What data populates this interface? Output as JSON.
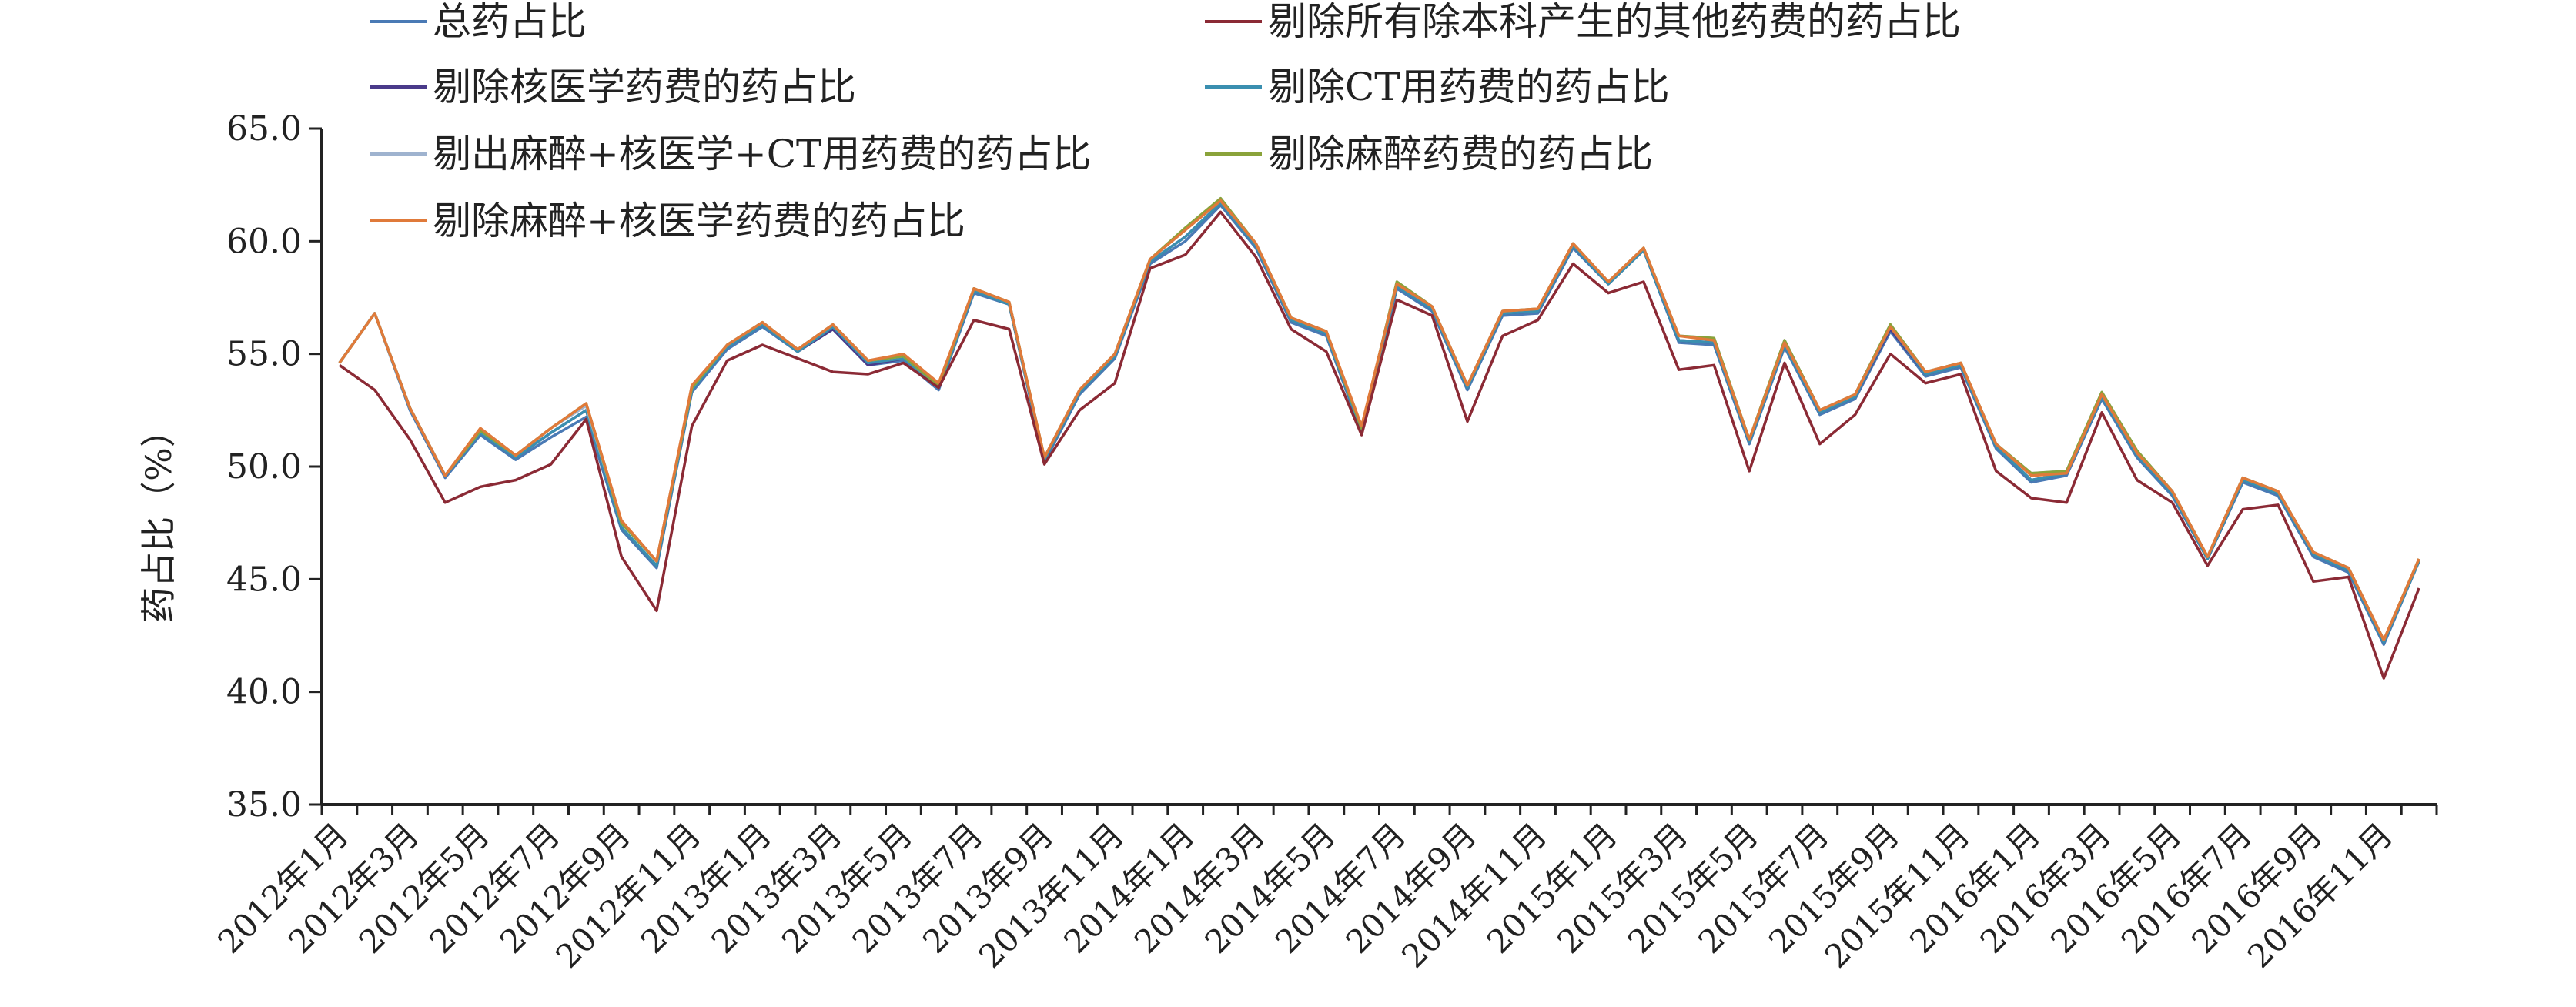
{
  "chart_data": {
    "type": "line",
    "title": "",
    "xlabel": "",
    "ylabel": "药占比（%）",
    "ylim": [
      35.0,
      65.0
    ],
    "yticks": [
      "35.0",
      "40.0",
      "45.0",
      "50.0",
      "55.0",
      "60.0",
      "65.0"
    ],
    "grid": false,
    "legend_position": "top",
    "x": [
      "2012年1月",
      "2012年2月",
      "2012年3月",
      "2012年4月",
      "2012年5月",
      "2012年6月",
      "2012年7月",
      "2012年8月",
      "2012年9月",
      "2012年10月",
      "2012年11月",
      "2012年12月",
      "2013年1月",
      "2013年2月",
      "2013年3月",
      "2013年4月",
      "2013年5月",
      "2013年6月",
      "2013年7月",
      "2013年8月",
      "2013年9月",
      "2013年10月",
      "2013年11月",
      "2013年12月",
      "2014年1月",
      "2014年2月",
      "2014年3月",
      "2014年4月",
      "2014年5月",
      "2014年6月",
      "2014年7月",
      "2014年8月",
      "2014年9月",
      "2014年10月",
      "2014年11月",
      "2014年12月",
      "2015年1月",
      "2015年2月",
      "2015年3月",
      "2015年4月",
      "2015年5月",
      "2015年6月",
      "2015年7月",
      "2015年8月",
      "2015年9月",
      "2015年10月",
      "2015年11月",
      "2015年12月",
      "2016年1月",
      "2016年2月",
      "2016年3月",
      "2016年4月",
      "2016年5月",
      "2016年6月",
      "2016年7月",
      "2016年8月",
      "2016年9月",
      "2016年10月",
      "2016年11月",
      "2016年12月"
    ],
    "xtick_labels": [
      "2012年1月",
      "2012年3月",
      "2012年5月",
      "2012年7月",
      "2012年9月",
      "2012年11月",
      "2013年1月",
      "2013年3月",
      "2013年5月",
      "2013年7月",
      "2013年9月",
      "2013年11月",
      "2014年1月",
      "2014年3月",
      "2014年5月",
      "2014年7月",
      "2014年9月",
      "2014年11月",
      "2015年1月",
      "2015年3月",
      "2015年5月",
      "2015年7月",
      "2015年9月",
      "2015年11月",
      "2016年1月",
      "2016年3月",
      "2016年5月",
      "2016年7月",
      "2016年9月",
      "2016年11月"
    ],
    "series": [
      {
        "name": "总药占比",
        "color": "#4a7ab5",
        "values": [
          54.6,
          56.8,
          52.5,
          49.5,
          51.4,
          50.3,
          51.3,
          52.2,
          47.2,
          45.5,
          53.3,
          55.2,
          56.2,
          55.1,
          56.1,
          54.5,
          54.7,
          53.4,
          57.7,
          57.2,
          50.2,
          53.2,
          54.8,
          59.0,
          60.0,
          61.6,
          59.7,
          56.4,
          55.8,
          51.5,
          57.9,
          56.9,
          53.4,
          56.7,
          56.8,
          59.7,
          58.1,
          59.6,
          55.5,
          55.4,
          51.0,
          55.3,
          52.3,
          53.0,
          56.0,
          54.0,
          54.4,
          50.8,
          49.3,
          49.6,
          53.0,
          50.4,
          48.7,
          45.9,
          49.3,
          48.7,
          46.0,
          45.3,
          42.1,
          45.8
        ]
      },
      {
        "name": "剔除所有除本科产生的其他药费的药占比",
        "color": "#8b2a35",
        "values": [
          54.5,
          53.4,
          51.2,
          48.4,
          49.1,
          49.4,
          50.1,
          52.1,
          46.0,
          43.6,
          51.8,
          54.7,
          55.4,
          54.8,
          54.2,
          54.1,
          54.6,
          53.5,
          56.5,
          56.1,
          50.1,
          52.5,
          53.7,
          58.8,
          59.4,
          61.3,
          59.3,
          56.1,
          55.1,
          51.4,
          57.4,
          56.7,
          52.0,
          55.8,
          56.5,
          59.0,
          57.7,
          58.2,
          54.3,
          54.5,
          49.8,
          54.6,
          51.0,
          52.3,
          55.0,
          53.7,
          54.1,
          49.8,
          48.6,
          48.4,
          52.4,
          49.4,
          48.4,
          45.6,
          48.1,
          48.3,
          44.9,
          45.1,
          40.6,
          44.6
        ]
      },
      {
        "name": "剔除核医学药费的药占比",
        "color": "#4a3a8a",
        "values": [
          54.6,
          56.8,
          52.6,
          49.6,
          51.5,
          50.4,
          51.5,
          52.5,
          47.3,
          45.6,
          53.4,
          55.3,
          56.3,
          55.1,
          56.1,
          54.5,
          54.8,
          53.5,
          57.8,
          57.2,
          50.3,
          53.3,
          54.9,
          59.1,
          60.2,
          61.7,
          59.8,
          56.5,
          55.9,
          51.6,
          58.0,
          57.0,
          53.5,
          56.8,
          56.9,
          59.8,
          58.1,
          59.6,
          55.6,
          55.5,
          51.1,
          55.4,
          52.4,
          53.1,
          56.1,
          54.1,
          54.5,
          50.9,
          49.4,
          49.7,
          53.1,
          50.5,
          48.8,
          45.9,
          49.4,
          48.8,
          46.1,
          45.4,
          42.2,
          45.8
        ]
      },
      {
        "name": "剔除CT用药费的药占比",
        "color": "#3a8fb0",
        "values": [
          54.6,
          56.8,
          52.6,
          49.6,
          51.5,
          50.4,
          51.5,
          52.5,
          47.3,
          45.6,
          53.4,
          55.3,
          56.3,
          55.1,
          56.2,
          54.6,
          54.8,
          53.5,
          57.8,
          57.2,
          50.3,
          53.3,
          54.9,
          59.1,
          60.2,
          61.7,
          59.8,
          56.5,
          55.9,
          51.6,
          58.0,
          57.0,
          53.5,
          56.8,
          56.9,
          59.8,
          58.1,
          59.6,
          55.6,
          55.5,
          51.1,
          55.4,
          52.4,
          53.1,
          56.2,
          54.1,
          54.5,
          50.9,
          49.4,
          49.7,
          53.1,
          50.5,
          48.8,
          45.9,
          49.4,
          48.8,
          46.1,
          45.4,
          42.2,
          45.8
        ]
      },
      {
        "name": "剔出麻醉+核医学+CT用药费的药占比",
        "color": "#9fb3cf",
        "values": [
          54.6,
          56.8,
          52.6,
          49.6,
          51.6,
          50.5,
          51.7,
          52.7,
          47.5,
          45.8,
          53.5,
          55.4,
          56.4,
          55.2,
          56.3,
          54.7,
          54.9,
          53.6,
          57.9,
          57.3,
          50.4,
          53.4,
          55.0,
          59.2,
          60.5,
          61.9,
          59.9,
          56.6,
          56.0,
          51.7,
          58.2,
          57.1,
          53.6,
          56.9,
          57.0,
          59.9,
          58.2,
          59.7,
          55.8,
          55.7,
          51.2,
          55.6,
          52.5,
          53.2,
          56.3,
          54.2,
          54.6,
          51.0,
          49.7,
          49.8,
          53.3,
          50.7,
          48.9,
          46.0,
          49.5,
          48.9,
          46.2,
          45.5,
          42.3,
          45.9
        ]
      },
      {
        "name": "剔除麻醉药费的药占比",
        "color": "#8aa33a",
        "values": [
          54.6,
          56.8,
          52.6,
          49.6,
          51.6,
          50.5,
          51.7,
          52.8,
          47.5,
          45.8,
          53.5,
          55.4,
          56.4,
          55.2,
          56.3,
          54.7,
          54.9,
          53.6,
          57.9,
          57.3,
          50.4,
          53.4,
          55.0,
          59.2,
          60.6,
          61.9,
          59.9,
          56.6,
          56.0,
          51.7,
          58.2,
          57.1,
          53.6,
          56.9,
          57.0,
          59.9,
          58.2,
          59.7,
          55.8,
          55.7,
          51.2,
          55.6,
          52.5,
          53.2,
          56.3,
          54.2,
          54.6,
          51.0,
          49.7,
          49.8,
          53.3,
          50.7,
          48.9,
          46.0,
          49.5,
          48.9,
          46.2,
          45.5,
          42.3,
          45.9
        ]
      },
      {
        "name": "剔除麻醉+核医学药费的药占比",
        "color": "#e07a3a",
        "values": [
          54.6,
          56.8,
          52.6,
          49.6,
          51.7,
          50.5,
          51.7,
          52.8,
          47.6,
          45.8,
          53.6,
          55.4,
          56.4,
          55.2,
          56.3,
          54.7,
          55.0,
          53.7,
          57.9,
          57.3,
          50.4,
          53.4,
          55.0,
          59.2,
          60.5,
          61.8,
          59.9,
          56.6,
          56.0,
          51.8,
          58.1,
          57.1,
          53.6,
          56.9,
          57.0,
          59.9,
          58.2,
          59.7,
          55.8,
          55.6,
          51.2,
          55.5,
          52.5,
          53.2,
          56.2,
          54.2,
          54.6,
          51.0,
          49.6,
          49.7,
          53.2,
          50.6,
          48.9,
          46.0,
          49.5,
          48.9,
          46.2,
          45.5,
          42.3,
          45.9
        ]
      }
    ]
  }
}
